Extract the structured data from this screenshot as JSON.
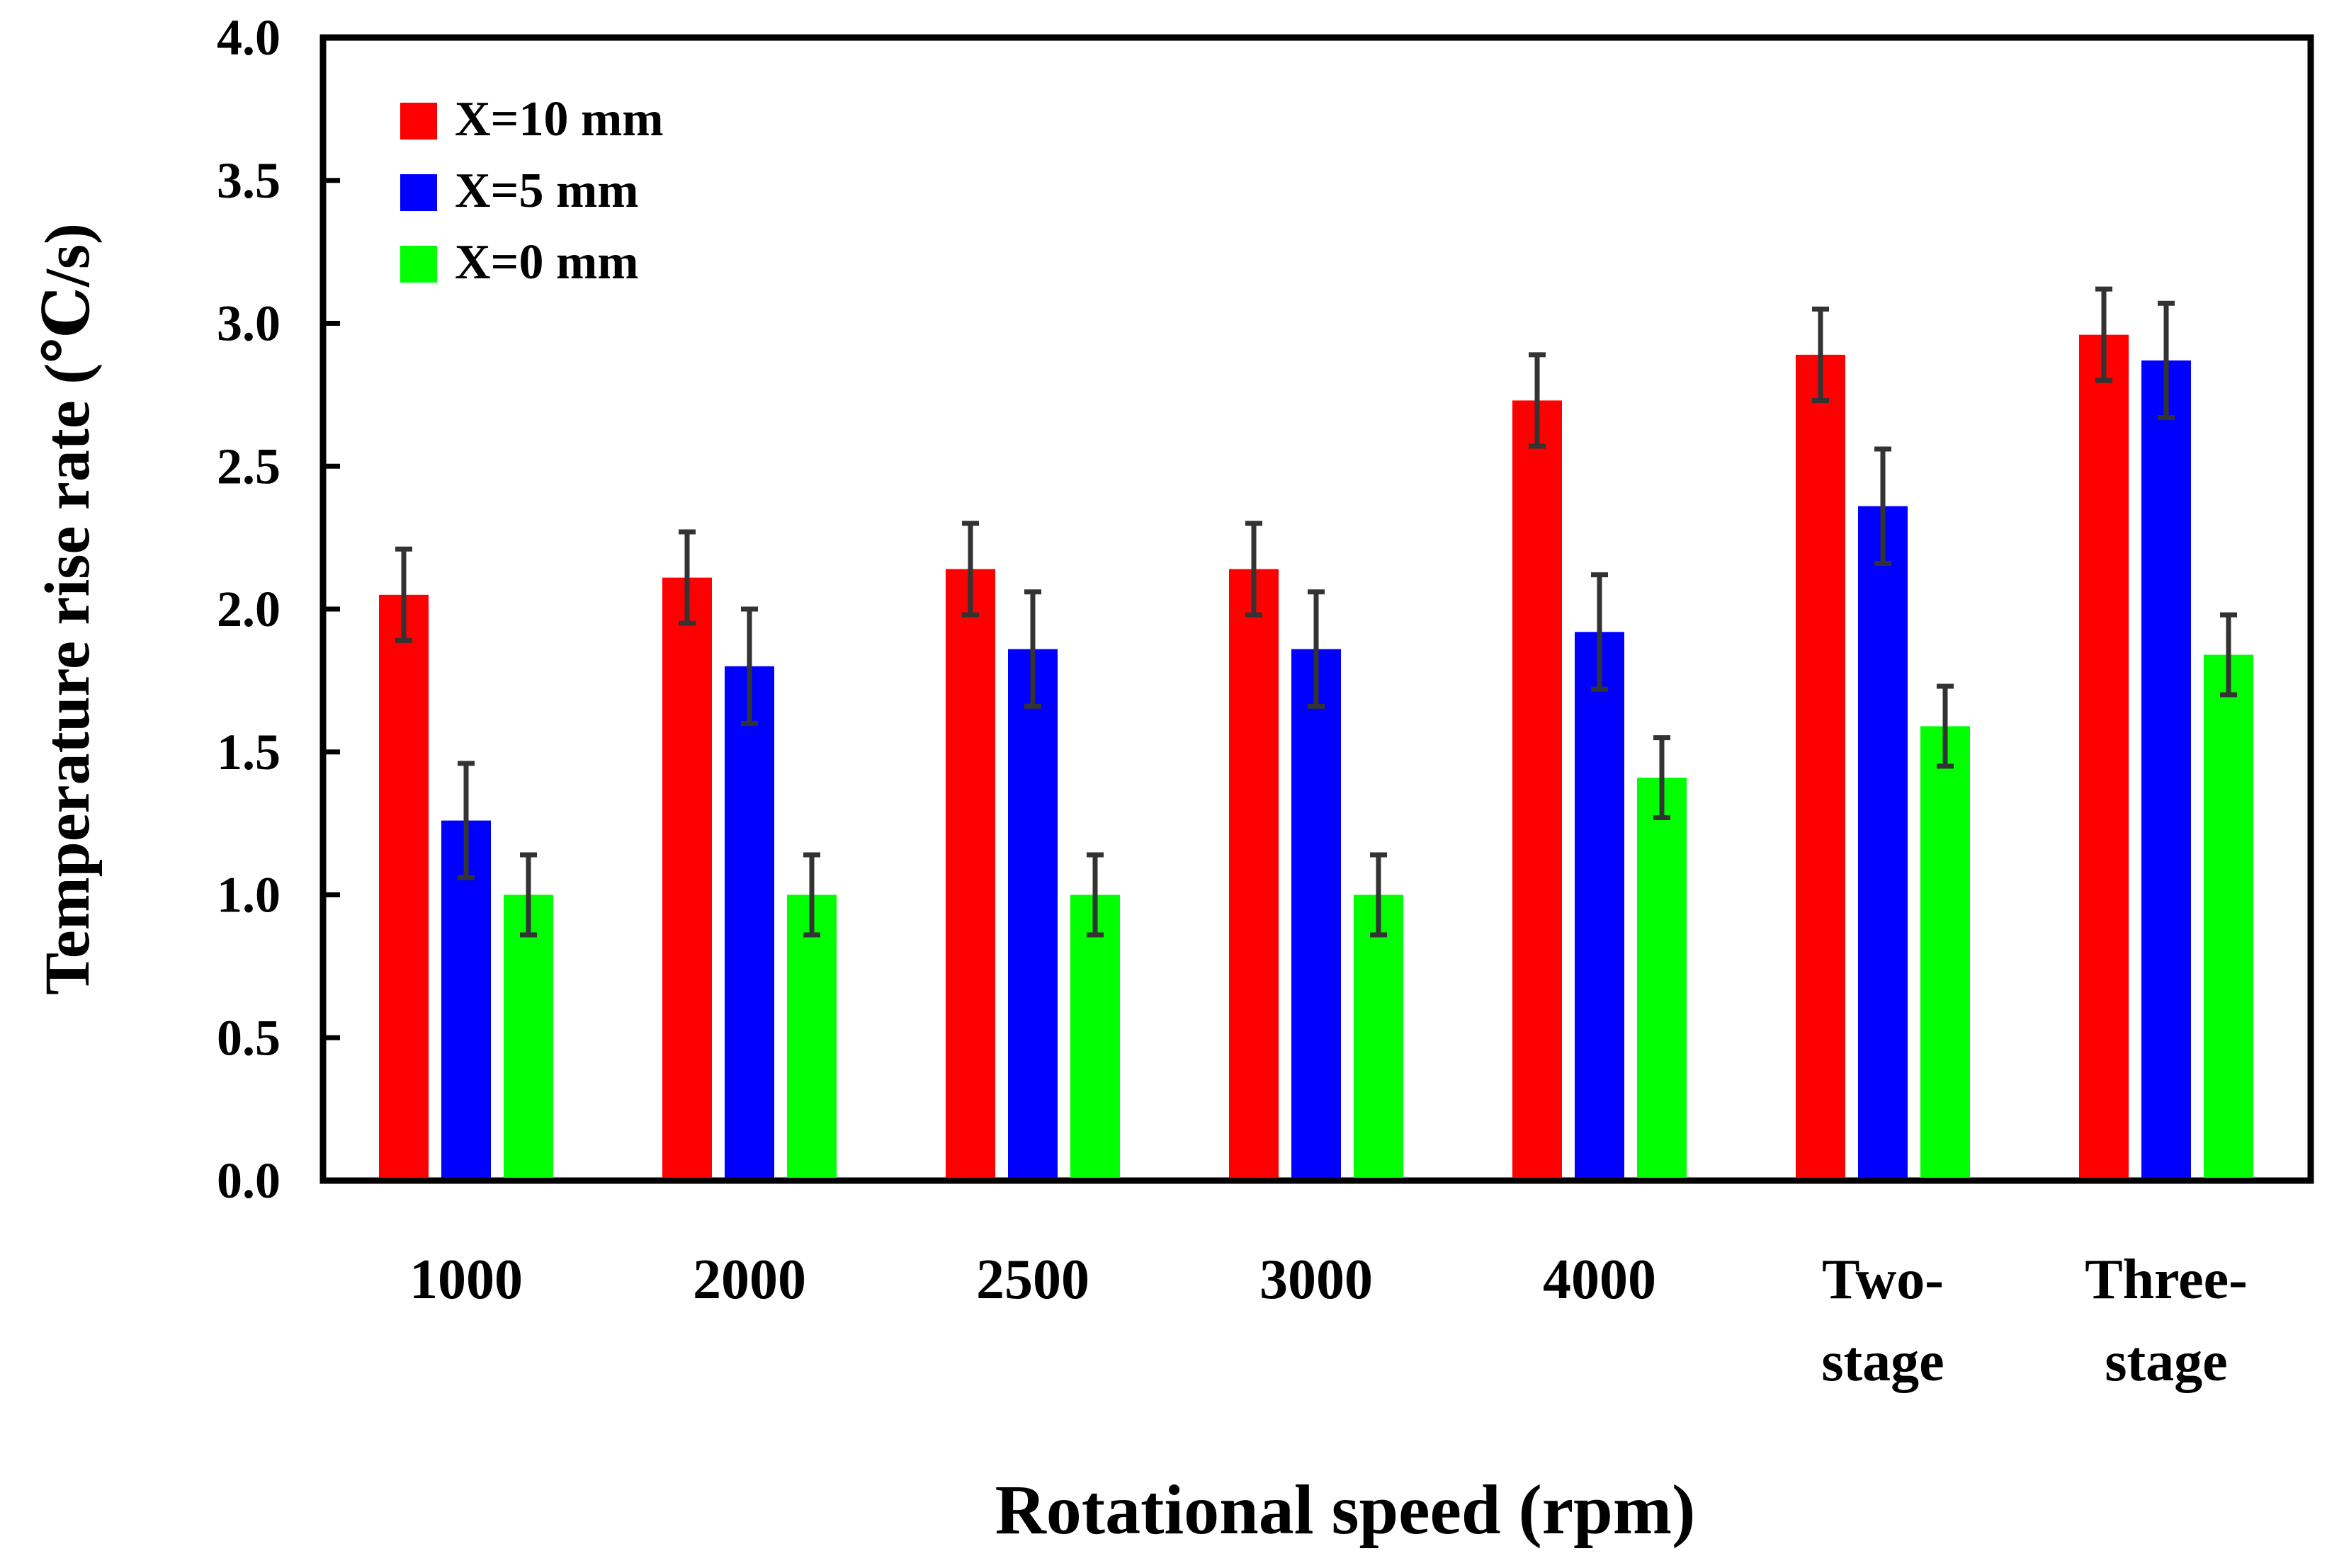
{
  "chart_data": {
    "type": "bar",
    "title": "",
    "xlabel": "Rotational speed (rpm)",
    "ylabel": "Temperature rise rate (℃/s)",
    "ylim": [
      0,
      4.0
    ],
    "yticks": [
      0.0,
      0.5,
      1.0,
      1.5,
      2.0,
      2.5,
      3.0,
      3.5,
      4.0
    ],
    "ytick_labels": [
      "0.0",
      "0.5",
      "1.0",
      "1.5",
      "2.0",
      "2.5",
      "3.0",
      "3.5",
      "4.0"
    ],
    "categories": [
      "1000",
      "2000",
      "2500",
      "3000",
      "4000",
      "Two-stage",
      "Three-stage"
    ],
    "category_label_lines": [
      [
        "1000"
      ],
      [
        "2000"
      ],
      [
        "2500"
      ],
      [
        "3000"
      ],
      [
        "4000"
      ],
      [
        "Two-",
        "stage"
      ],
      [
        "Three-",
        "stage"
      ]
    ],
    "legend_position": "top-left",
    "grid": false,
    "series": [
      {
        "name": "X=10 mm",
        "color": "#ff0000",
        "values": [
          2.05,
          2.11,
          2.14,
          2.14,
          2.73,
          2.89,
          2.96
        ],
        "errors": [
          0.16,
          0.16,
          0.16,
          0.16,
          0.16,
          0.16,
          0.16
        ]
      },
      {
        "name": "X=5 mm",
        "color": "#0000ff",
        "values": [
          1.26,
          1.8,
          1.86,
          1.86,
          1.92,
          2.36,
          2.87
        ],
        "errors": [
          0.2,
          0.2,
          0.2,
          0.2,
          0.2,
          0.2,
          0.2
        ]
      },
      {
        "name": "X=0 mm",
        "color": "#00ff00",
        "values": [
          1.0,
          1.0,
          1.0,
          1.0,
          1.41,
          1.59,
          1.84
        ],
        "errors": [
          0.14,
          0.14,
          0.14,
          0.14,
          0.14,
          0.14,
          0.14
        ]
      }
    ],
    "error_bar_color": "#333333"
  }
}
